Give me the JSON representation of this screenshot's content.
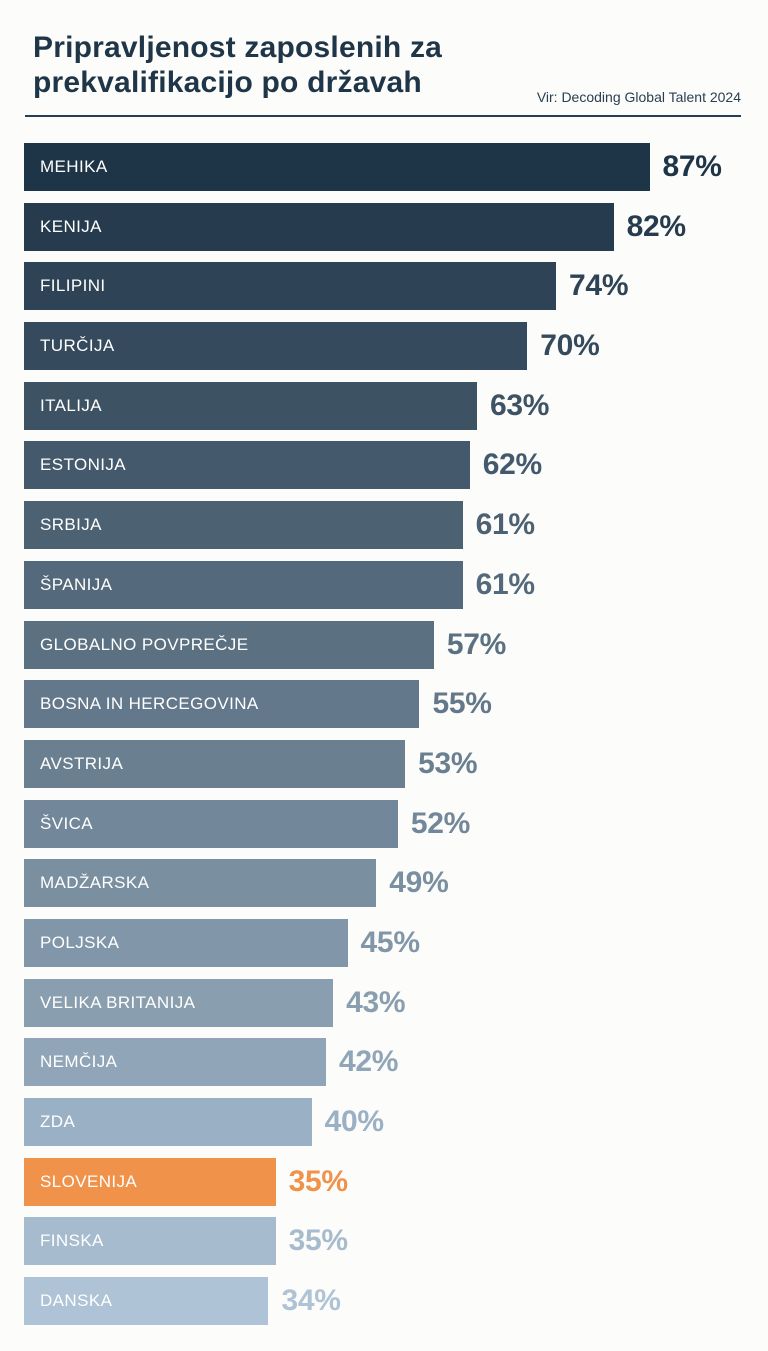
{
  "title": {
    "line1": "Pripravljenost zaposlenih za",
    "line2": "prekvalifikacijo po državah",
    "full": "Pripravljenost zaposlenih za prekvalifikacijo po državah"
  },
  "source": "Vir: Decoding Global Talent 2024",
  "colors": {
    "title": "#1f3648",
    "divider": "#2b3e50",
    "background": "#fcfcfa",
    "bar_label_text": "#ffffff",
    "highlight": "#f0924a"
  },
  "chart_data": {
    "type": "bar",
    "orientation": "horizontal",
    "value_suffix": "%",
    "xlim": [
      0,
      100
    ],
    "grid": false,
    "legend": false,
    "categories": [
      "MEHIKA",
      "KENIJA",
      "FILIPINI",
      "TURČIJA",
      "ITALIJA",
      "ESTONIJA",
      "SRBIJA",
      "ŠPANIJA",
      "GLOBALNO POVPREČJE",
      "BOSNA IN HERCEGOVINA",
      "AVSTRIJA",
      "ŠVICA",
      "MADŽARSKA",
      "POLJSKA",
      "VELIKA BRITANIJA",
      "NEMČIJA",
      "ZDA",
      "SLOVENIJA",
      "FINSKA",
      "DANSKA"
    ],
    "values": [
      87,
      82,
      74,
      70,
      63,
      62,
      61,
      61,
      57,
      55,
      53,
      52,
      49,
      45,
      43,
      42,
      40,
      35,
      35,
      34
    ],
    "bar_colors": [
      "#1e3547",
      "#263c4e",
      "#2e4456",
      "#354b5d",
      "#3d5364",
      "#445a6c",
      "#4c6273",
      "#54697b",
      "#5b7182",
      "#63788a",
      "#6a8091",
      "#728799",
      "#7a8fa0",
      "#8196a8",
      "#899eaf",
      "#90a5b7",
      "#9ab0c4",
      "#f0924a",
      "#a7bbce",
      "#aec3d5"
    ],
    "highlighted_category": "SLOVENIJA"
  }
}
